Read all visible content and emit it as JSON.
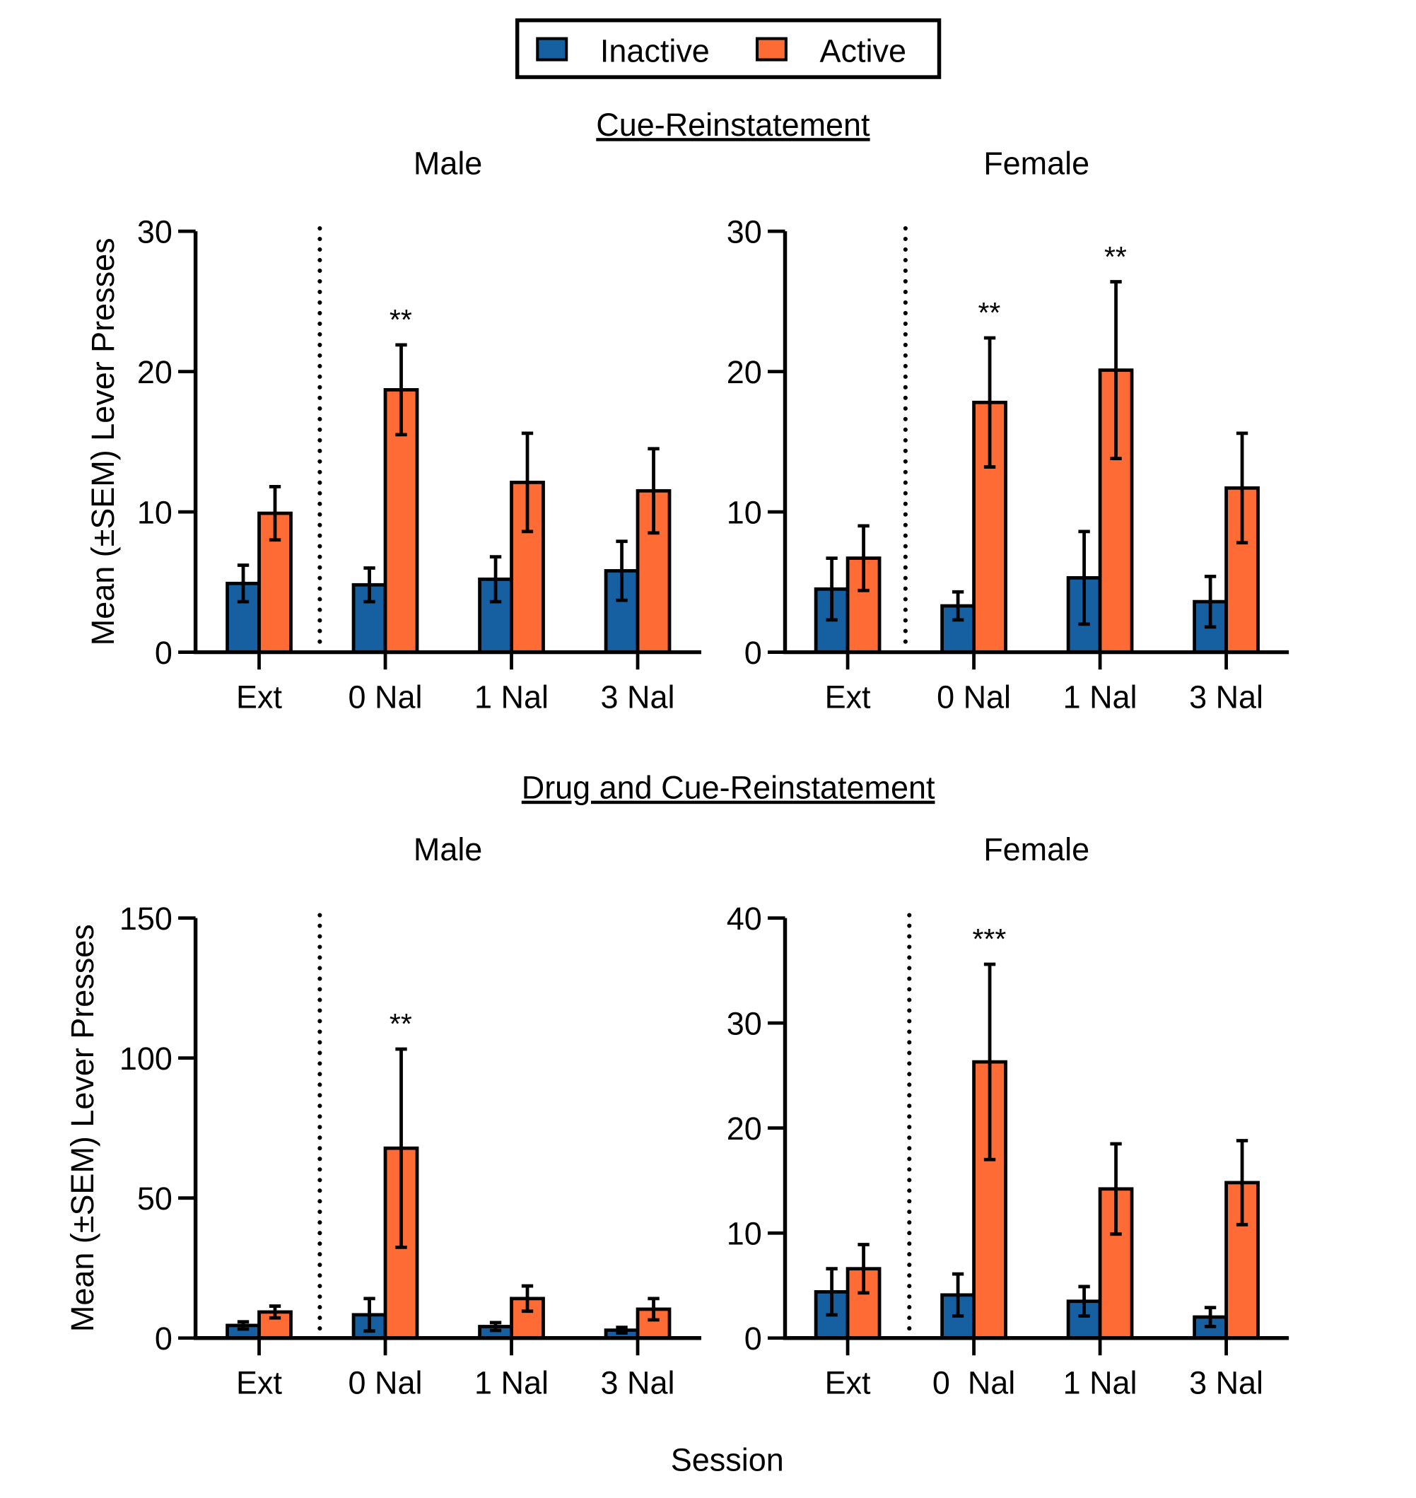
{
  "legend": {
    "placement": "top-center",
    "items": [
      {
        "label": "Inactive",
        "color": "#1660A2"
      },
      {
        "label": "Active",
        "color": "#FF6B35"
      }
    ]
  },
  "sections": [
    {
      "title": "Cue-Reinstatement"
    },
    {
      "title": "Drug and Cue-Reinstatement"
    }
  ],
  "xlabel": "Session",
  "chart_data": [
    {
      "type": "bar",
      "section": "Cue-Reinstatement",
      "title": "Male",
      "ylabel": "Mean (±SEM) Lever Presses",
      "ylim": [
        0,
        30
      ],
      "yticks": [
        0,
        10,
        20,
        30
      ],
      "categories": [
        "Ext",
        "0 Nal",
        "1 Nal",
        "3 Nal"
      ],
      "series": [
        {
          "name": "Inactive",
          "values": [
            4.9,
            4.8,
            5.2,
            5.8
          ],
          "sem": [
            1.3,
            1.2,
            1.6,
            2.1
          ]
        },
        {
          "name": "Active",
          "values": [
            9.9,
            18.7,
            12.1,
            11.5
          ],
          "sem": [
            1.9,
            3.2,
            3.5,
            3.0
          ]
        }
      ],
      "annotations": [
        {
          "category": "0 Nal",
          "text": "**"
        }
      ]
    },
    {
      "type": "bar",
      "section": "Cue-Reinstatement",
      "title": "Female",
      "ylabel": "",
      "ylim": [
        0,
        30
      ],
      "yticks": [
        0,
        10,
        20,
        30
      ],
      "categories": [
        "Ext",
        "0 Nal",
        "1 Nal",
        "3 Nal"
      ],
      "series": [
        {
          "name": "Inactive",
          "values": [
            4.5,
            3.3,
            5.3,
            3.6
          ],
          "sem": [
            2.2,
            1.0,
            3.3,
            1.8
          ]
        },
        {
          "name": "Active",
          "values": [
            6.7,
            17.8,
            20.1,
            11.7
          ],
          "sem": [
            2.3,
            4.6,
            6.3,
            3.9
          ]
        }
      ],
      "annotations": [
        {
          "category": "0 Nal",
          "text": "**"
        },
        {
          "category": "1 Nal",
          "text": "**"
        }
      ]
    },
    {
      "type": "bar",
      "section": "Drug and Cue-Reinstatement",
      "title": "Male",
      "ylabel": "Mean (±SEM) Lever Presses",
      "ylim": [
        0,
        150
      ],
      "yticks": [
        0,
        50,
        100,
        150
      ],
      "categories": [
        "Ext",
        "0 Nal",
        "1 Nal",
        "3 Nal"
      ],
      "series": [
        {
          "name": "Inactive",
          "values": [
            4.5,
            8.3,
            4.1,
            2.8
          ],
          "sem": [
            1.3,
            5.8,
            1.4,
            1.0
          ]
        },
        {
          "name": "Active",
          "values": [
            9.3,
            67.8,
            14.1,
            10.3
          ],
          "sem": [
            2.1,
            35.4,
            4.5,
            3.8
          ]
        }
      ],
      "annotations": [
        {
          "category": "0 Nal",
          "text": "**"
        }
      ]
    },
    {
      "type": "bar",
      "section": "Drug and Cue-Reinstatement",
      "title": "Female",
      "ylabel": "",
      "ylim": [
        0,
        40
      ],
      "yticks": [
        0,
        10,
        20,
        30,
        40
      ],
      "categories": [
        "Ext",
        "0  Nal",
        "1 Nal",
        "3 Nal"
      ],
      "series": [
        {
          "name": "Inactive",
          "values": [
            4.4,
            4.1,
            3.5,
            2.0
          ],
          "sem": [
            2.2,
            2.0,
            1.4,
            0.9
          ]
        },
        {
          "name": "Active",
          "values": [
            6.6,
            26.3,
            14.2,
            14.8
          ],
          "sem": [
            2.3,
            9.3,
            4.3,
            4.0
          ]
        }
      ],
      "annotations": [
        {
          "category": "0  Nal",
          "text": "***"
        }
      ]
    }
  ]
}
